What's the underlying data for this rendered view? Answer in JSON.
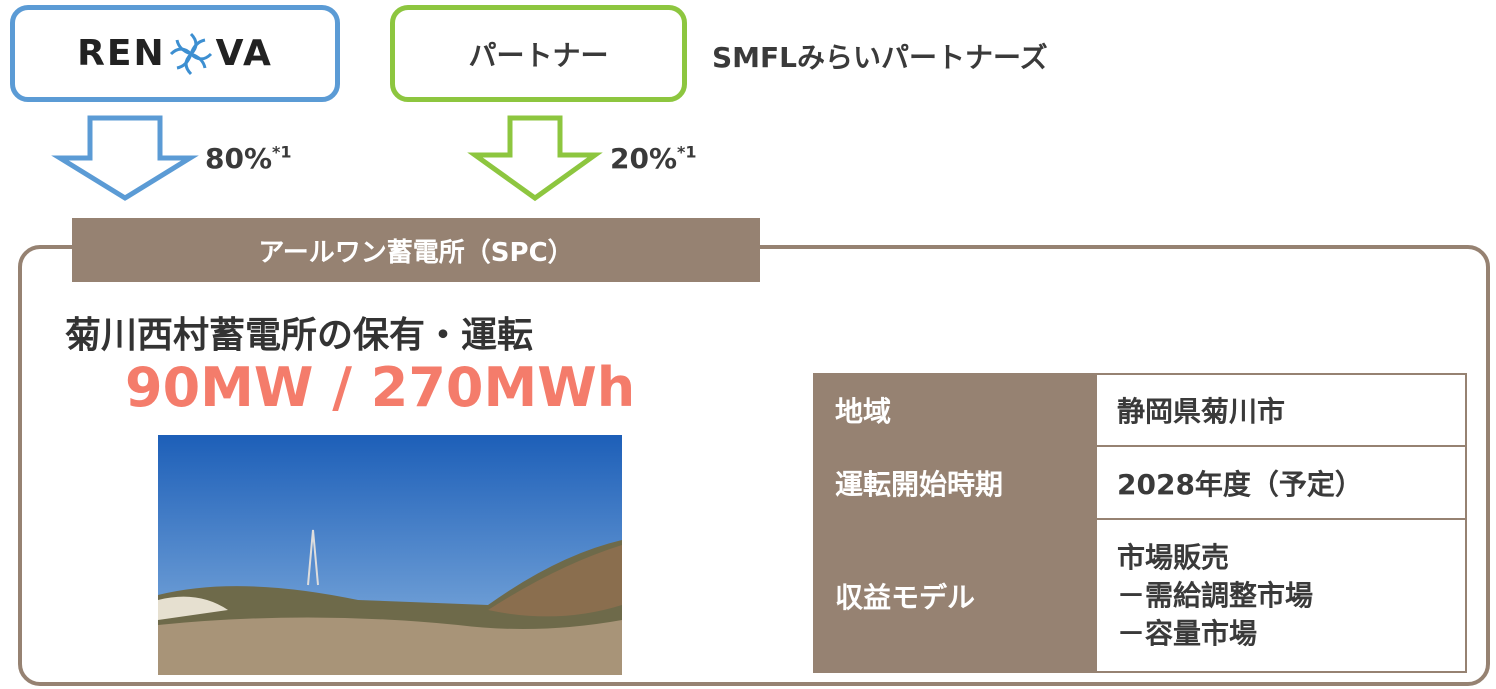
{
  "logo": {
    "left": "REN",
    "right": "VA"
  },
  "partner": {
    "box": "パートナー",
    "name": "SMFLみらいパートナーズ"
  },
  "shares": [
    {
      "value": "80%",
      "note": "*1"
    },
    {
      "value": "20%",
      "note": "*1"
    }
  ],
  "spc": {
    "tab": "アールワン蓄電所（SPC）",
    "heading": "菊川西村蓄電所の保有・運転",
    "capacity": "90MW / 270MWh"
  },
  "table": {
    "rows": [
      [
        "地域",
        "静岡県菊川市"
      ],
      [
        "運転開始時期",
        "2028年度（予定）"
      ],
      [
        "収益モデル",
        [
          "市場販売",
          "－需給調整市場",
          "－容量市場"
        ]
      ]
    ]
  }
}
